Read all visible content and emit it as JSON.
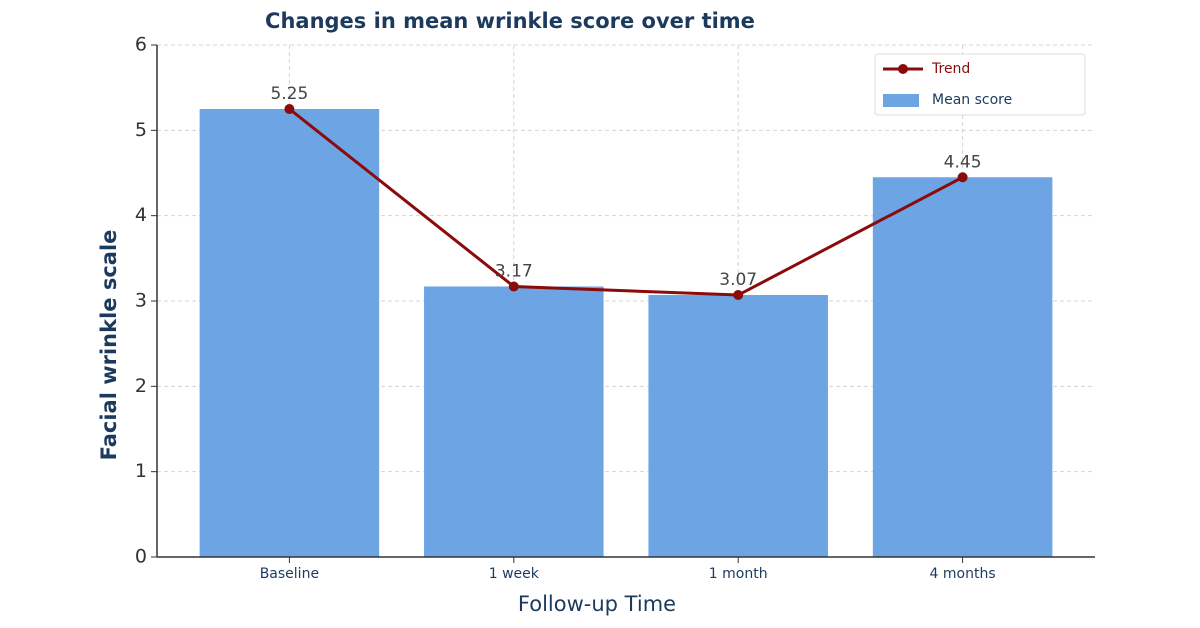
{
  "chart_data": {
    "type": "bar",
    "title": "Changes in mean wrinkle score over time",
    "x_label": "Follow-up Time",
    "y_label": "Facial wrinkle scale",
    "categories": [
      "Baseline",
      "1 week",
      "1 month",
      "4 months"
    ],
    "series": [
      {
        "name": "Mean score",
        "type": "bar",
        "color": "#6ca4e4",
        "values": [
          5.25,
          3.17,
          3.07,
          4.45
        ]
      },
      {
        "name": "Trend",
        "type": "line",
        "color": "#8b0a0a",
        "values": [
          5.25,
          3.17,
          3.07,
          4.45
        ]
      }
    ],
    "ylim": [
      0,
      6
    ],
    "yticks": [
      0,
      1,
      2,
      3,
      4,
      5,
      6
    ],
    "grid": true,
    "legend": "upper right"
  }
}
